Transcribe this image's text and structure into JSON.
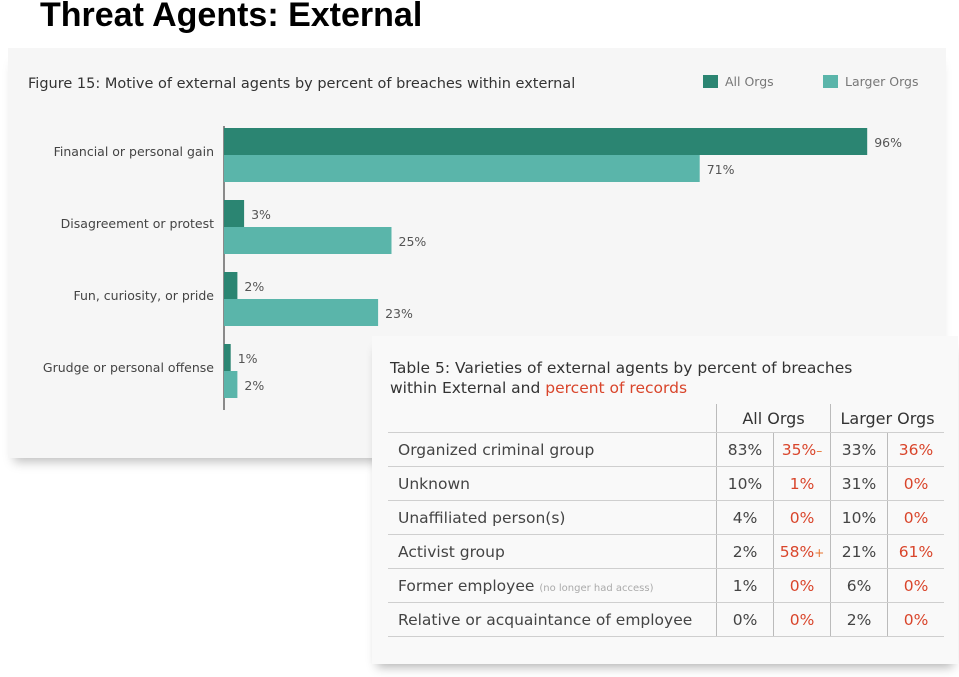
{
  "slide": {
    "title": "Threat Agents: External"
  },
  "figure": {
    "title": "Figure 15: Motive of external agents by percent of breaches within external",
    "colors": {
      "all_orgs": "#2b8572",
      "larger_orgs": "#5ab5aa"
    }
  },
  "chart_data": {
    "type": "bar",
    "orientation": "horizontal",
    "title": "Figure 15: Motive of external agents by percent of breaches within external",
    "categories": [
      "Financial or personal gain",
      "Disagreement or protest",
      "Fun, curiosity, or pride",
      "Grudge or personal offense"
    ],
    "series": [
      {
        "name": "All Orgs",
        "values": [
          96,
          3,
          2,
          1
        ],
        "labels": [
          "96%",
          "3%",
          "2%",
          "1%"
        ]
      },
      {
        "name": "Larger Orgs",
        "values": [
          71,
          25,
          23,
          2
        ],
        "labels": [
          "71%",
          "25%",
          "23%",
          "2%"
        ]
      }
    ],
    "xlim": [
      0,
      100
    ],
    "legend_position": "top-right",
    "grid": false
  },
  "table": {
    "title_part1": "Table 5: Varieties of external agents by percent of breaches",
    "title_part2": "within External and ",
    "title_red": "percent of records",
    "groups": [
      "All Orgs",
      "Larger Orgs"
    ],
    "rows": [
      {
        "label": "Organized criminal group",
        "note": "",
        "all_pct": "83%",
        "all_rec": "35%",
        "all_mark": "–",
        "larger_pct": "33%",
        "larger_rec": "36%",
        "larger_mark": ""
      },
      {
        "label": "Unknown",
        "note": "",
        "all_pct": "10%",
        "all_rec": "1%",
        "all_mark": "",
        "larger_pct": "31%",
        "larger_rec": "0%",
        "larger_mark": ""
      },
      {
        "label": "Unaffiliated person(s)",
        "note": "",
        "all_pct": "4%",
        "all_rec": "0%",
        "all_mark": "",
        "larger_pct": "10%",
        "larger_rec": "0%",
        "larger_mark": ""
      },
      {
        "label": "Activist group",
        "note": "",
        "all_pct": "2%",
        "all_rec": "58%",
        "all_mark": "+",
        "larger_pct": "21%",
        "larger_rec": "61%",
        "larger_mark": ""
      },
      {
        "label": "Former employee",
        "note": "(no longer had access)",
        "all_pct": "1%",
        "all_rec": "0%",
        "all_mark": "",
        "larger_pct": "6%",
        "larger_rec": "0%",
        "larger_mark": ""
      },
      {
        "label": "Relative or acquaintance of employee",
        "note": "",
        "all_pct": "0%",
        "all_rec": "0%",
        "all_mark": "",
        "larger_pct": "2%",
        "larger_rec": "0%",
        "larger_mark": ""
      }
    ]
  }
}
